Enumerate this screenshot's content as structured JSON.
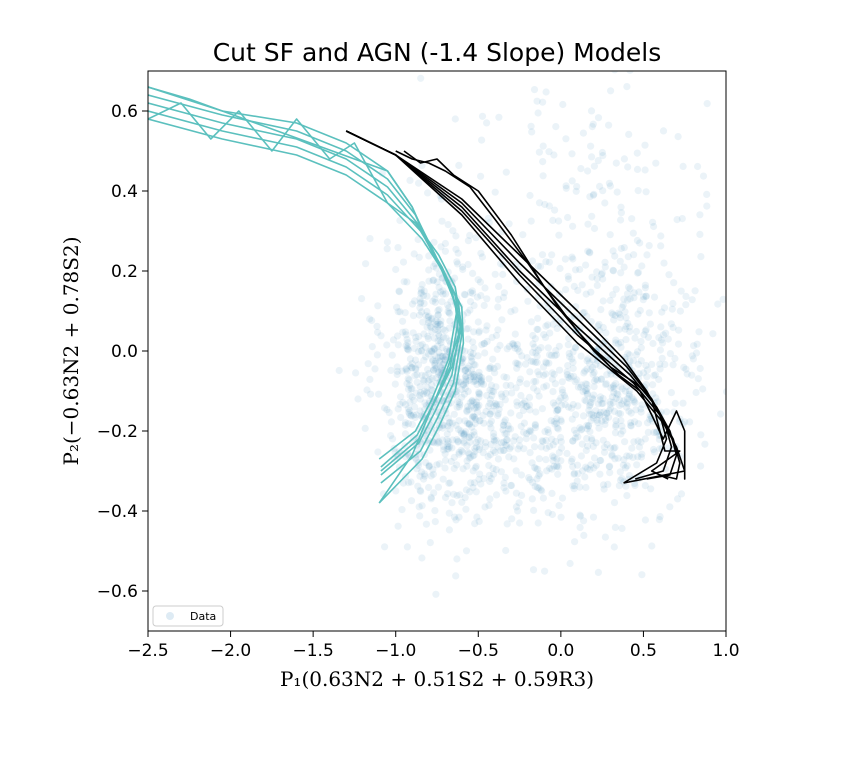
{
  "chart_data": {
    "type": "scatter",
    "title": "Cut SF and AGN (-1.4 Slope) Models",
    "xlabel": "P₁(0.63N2 + 0.51S2 + 0.59R3)",
    "ylabel": "P₂(−0.63N2 + 0.78S2)",
    "xlim": [
      -2.5,
      1.0
    ],
    "ylim": [
      -0.7,
      0.7
    ],
    "xticks": [
      -2.5,
      -2.0,
      -1.5,
      -1.0,
      -0.5,
      0.0,
      0.5,
      1.0
    ],
    "xtick_labels": [
      "−2.5",
      "−2.0",
      "−1.5",
      "−1.0",
      "−0.5",
      "0.0",
      "0.5",
      "1.0"
    ],
    "yticks": [
      -0.6,
      -0.4,
      -0.2,
      0.0,
      0.2,
      0.4,
      0.6
    ],
    "ytick_labels": [
      "−0.6",
      "−0.4",
      "−0.2",
      "0.0",
      "0.2",
      "0.4",
      "0.6"
    ],
    "grid": false,
    "legend": {
      "position": "lower-left",
      "entries": [
        "Data"
      ]
    },
    "colors": {
      "data": "#1f77b4",
      "sf_model": "#5bc0be",
      "agn_model": "#000000"
    },
    "series": [
      {
        "name": "Data",
        "kind": "scatter",
        "clusters": [
          {
            "cx": -0.72,
            "cy": -0.05,
            "sx": 0.18,
            "sy": 0.17,
            "weight": 0.35
          },
          {
            "cx": -0.3,
            "cy": -0.17,
            "sx": 0.35,
            "sy": 0.14,
            "weight": 0.25
          },
          {
            "cx": 0.35,
            "cy": -0.1,
            "sx": 0.25,
            "sy": 0.15,
            "weight": 0.25
          },
          {
            "cx": 0.1,
            "cy": 0.25,
            "sx": 0.45,
            "sy": 0.3,
            "weight": 0.15
          }
        ]
      },
      {
        "kind": "grid-lines",
        "lines": [
          [
            [
              -2.5,
              0.66
            ],
            [
              -2.05,
              0.6
            ],
            [
              -1.6,
              0.57
            ],
            [
              -1.3,
              0.52
            ],
            [
              -1.05,
              0.45
            ],
            [
              -0.9,
              0.36
            ],
            [
              -0.78,
              0.25
            ],
            [
              -0.68,
              0.17
            ],
            [
              -0.63,
              0.1
            ],
            [
              -0.68,
              -0.02
            ],
            [
              -0.78,
              -0.12
            ],
            [
              -0.88,
              -0.2
            ],
            [
              -1.1,
              -0.27
            ]
          ],
          [
            [
              -2.5,
              0.64
            ],
            [
              -2.05,
              0.59
            ],
            [
              -1.6,
              0.55
            ],
            [
              -1.3,
              0.5
            ],
            [
              -1.05,
              0.43
            ],
            [
              -0.88,
              0.34
            ],
            [
              -0.76,
              0.24
            ],
            [
              -0.66,
              0.15
            ],
            [
              -0.62,
              0.08
            ],
            [
              -0.67,
              -0.04
            ],
            [
              -0.77,
              -0.13
            ],
            [
              -0.87,
              -0.21
            ],
            [
              -1.09,
              -0.29
            ]
          ],
          [
            [
              -2.5,
              0.62
            ],
            [
              -2.05,
              0.57
            ],
            [
              -1.6,
              0.53
            ],
            [
              -1.3,
              0.48
            ],
            [
              -1.05,
              0.41
            ],
            [
              -0.87,
              0.32
            ],
            [
              -0.74,
              0.22
            ],
            [
              -0.64,
              0.14
            ],
            [
              -0.61,
              0.06
            ],
            [
              -0.66,
              -0.06
            ],
            [
              -0.76,
              -0.15
            ],
            [
              -0.86,
              -0.23
            ],
            [
              -1.09,
              -0.31
            ]
          ],
          [
            [
              -2.5,
              0.6
            ],
            [
              -2.05,
              0.55
            ],
            [
              -1.6,
              0.51
            ],
            [
              -1.3,
              0.46
            ],
            [
              -1.05,
              0.39
            ],
            [
              -0.85,
              0.3
            ],
            [
              -0.72,
              0.21
            ],
            [
              -0.62,
              0.12
            ],
            [
              -0.6,
              0.04
            ],
            [
              -0.65,
              -0.08
            ],
            [
              -0.75,
              -0.17
            ],
            [
              -0.85,
              -0.25
            ],
            [
              -1.09,
              -0.33
            ]
          ],
          [
            [
              -2.5,
              0.58
            ],
            [
              -2.05,
              0.53
            ],
            [
              -1.6,
              0.49
            ],
            [
              -1.3,
              0.44
            ],
            [
              -1.05,
              0.37
            ],
            [
              -0.84,
              0.28
            ],
            [
              -0.7,
              0.19
            ],
            [
              -0.6,
              0.11
            ],
            [
              -0.59,
              0.02
            ],
            [
              -0.64,
              -0.1
            ],
            [
              -0.74,
              -0.19
            ],
            [
              -0.84,
              -0.27
            ],
            [
              -1.1,
              -0.38
            ]
          ],
          [
            [
              -2.5,
              0.66
            ],
            [
              -2.25,
              0.63
            ],
            [
              -2.05,
              0.6
            ],
            [
              -1.85,
              0.57
            ],
            [
              -1.65,
              0.54
            ],
            [
              -1.45,
              0.51
            ],
            [
              -1.25,
              0.48
            ],
            [
              -1.05,
              0.45
            ],
            [
              -0.9,
              0.36
            ],
            [
              -0.82,
              0.28
            ],
            [
              -0.72,
              0.2
            ],
            [
              -0.64,
              0.12
            ],
            [
              -0.62,
              0.04
            ],
            [
              -0.7,
              -0.06
            ],
            [
              -0.8,
              -0.16
            ],
            [
              -0.9,
              -0.26
            ],
            [
              -1.1,
              -0.38
            ]
          ],
          [
            [
              -2.5,
              0.58
            ],
            [
              -2.3,
              0.62
            ],
            [
              -2.12,
              0.53
            ],
            [
              -1.95,
              0.6
            ],
            [
              -1.75,
              0.5
            ],
            [
              -1.6,
              0.58
            ],
            [
              -1.4,
              0.48
            ],
            [
              -1.25,
              0.52
            ],
            [
              -1.05,
              0.37
            ],
            [
              -0.88,
              0.32
            ],
            [
              -0.74,
              0.24
            ],
            [
              -0.64,
              0.16
            ],
            [
              -0.6,
              0.06
            ],
            [
              -0.66,
              -0.04
            ],
            [
              -0.78,
              -0.14
            ],
            [
              -0.86,
              -0.22
            ],
            [
              -1.09,
              -0.3
            ]
          ]
        ]
      },
      {
        "kind": "grid-lines",
        "lines": [
          [
            [
              -1.3,
              0.55
            ],
            [
              -1.0,
              0.49
            ],
            [
              -0.6,
              0.38
            ],
            [
              -0.25,
              0.24
            ],
            [
              0.1,
              0.1
            ],
            [
              0.38,
              -0.02
            ],
            [
              0.52,
              -0.1
            ],
            [
              0.6,
              -0.16
            ],
            [
              0.64,
              -0.22
            ],
            [
              0.58,
              -0.28
            ],
            [
              0.38,
              -0.33
            ]
          ],
          [
            [
              -1.3,
              0.55
            ],
            [
              -1.0,
              0.49
            ],
            [
              -0.6,
              0.37
            ],
            [
              -0.25,
              0.22
            ],
            [
              0.1,
              0.08
            ],
            [
              0.4,
              -0.04
            ],
            [
              0.55,
              -0.12
            ],
            [
              0.63,
              -0.18
            ],
            [
              0.67,
              -0.24
            ],
            [
              0.62,
              -0.3
            ],
            [
              0.45,
              -0.32
            ]
          ],
          [
            [
              -1.3,
              0.55
            ],
            [
              -1.0,
              0.49
            ],
            [
              -0.6,
              0.36
            ],
            [
              -0.25,
              0.2
            ],
            [
              0.1,
              0.06
            ],
            [
              0.42,
              -0.06
            ],
            [
              0.58,
              -0.14
            ],
            [
              0.66,
              -0.2
            ],
            [
              0.7,
              -0.26
            ],
            [
              0.66,
              -0.31
            ],
            [
              0.52,
              -0.32
            ]
          ],
          [
            [
              -1.3,
              0.55
            ],
            [
              -1.0,
              0.49
            ],
            [
              -0.6,
              0.35
            ],
            [
              -0.25,
              0.19
            ],
            [
              0.1,
              0.04
            ],
            [
              0.44,
              -0.08
            ],
            [
              0.6,
              -0.16
            ],
            [
              0.68,
              -0.22
            ],
            [
              0.72,
              -0.28
            ],
            [
              0.7,
              -0.32
            ],
            [
              0.6,
              -0.31
            ]
          ],
          [
            [
              -1.3,
              0.55
            ],
            [
              -1.0,
              0.49
            ],
            [
              -0.6,
              0.34
            ],
            [
              -0.25,
              0.17
            ],
            [
              0.1,
              0.02
            ],
            [
              0.46,
              -0.1
            ],
            [
              0.62,
              -0.18
            ],
            [
              0.7,
              -0.24
            ],
            [
              0.75,
              -0.3
            ],
            [
              0.75,
              -0.32
            ],
            [
              0.75,
              -0.3
            ]
          ],
          [
            [
              -1.0,
              0.5
            ],
            [
              -0.9,
              0.48
            ],
            [
              -0.8,
              0.47
            ],
            [
              -0.7,
              0.45
            ],
            [
              -0.55,
              0.41
            ],
            [
              -0.4,
              0.33
            ],
            [
              -0.2,
              0.22
            ],
            [
              0.0,
              0.1
            ],
            [
              0.2,
              0.0
            ],
            [
              0.35,
              -0.06
            ],
            [
              0.48,
              -0.1
            ],
            [
              0.55,
              -0.16
            ],
            [
              0.62,
              -0.22
            ],
            [
              0.7,
              -0.15
            ],
            [
              0.75,
              -0.2
            ],
            [
              0.75,
              -0.3
            ],
            [
              0.38,
              -0.33
            ]
          ],
          [
            [
              -0.95,
              0.5
            ],
            [
              -0.85,
              0.47
            ],
            [
              -0.75,
              0.48
            ],
            [
              -0.65,
              0.44
            ],
            [
              -0.5,
              0.4
            ],
            [
              -0.3,
              0.29
            ],
            [
              -0.1,
              0.16
            ],
            [
              0.1,
              0.05
            ],
            [
              0.3,
              -0.04
            ],
            [
              0.45,
              -0.08
            ],
            [
              0.55,
              -0.12
            ],
            [
              0.63,
              -0.25
            ],
            [
              0.72,
              -0.25
            ],
            [
              0.55,
              -0.3
            ],
            [
              0.65,
              -0.32
            ]
          ]
        ]
      }
    ]
  }
}
